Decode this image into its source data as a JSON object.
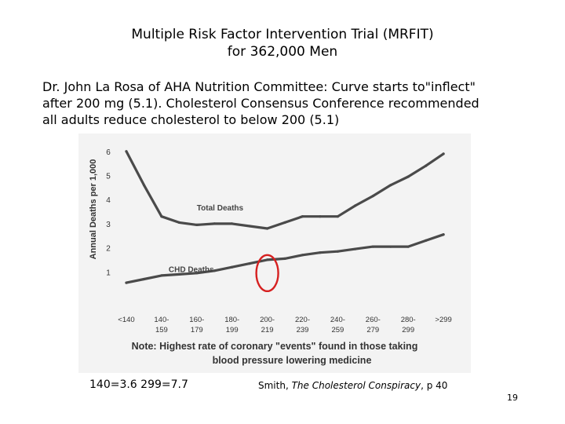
{
  "slide": {
    "title_line1": "Multiple Risk Factor Intervention Trial (MRFIT)",
    "title_line2": "for 362,000 Men",
    "caption_line1": "Dr. John La Rosa of AHA Nutrition Committee: Curve starts to\"inflect\"",
    "caption_line2": "after 200 mg (5.1). Cholesterol Consensus Conference recommended",
    "caption_line3": "all adults reduce cholesterol to below 200 (5.1)",
    "footer_values": "140=3.6 299=7.7",
    "citation_author": "Smith, ",
    "citation_title": "The Cholesterol Conspiracy",
    "citation_page": ", p 40",
    "page_number": "19"
  },
  "chart_data": {
    "type": "line",
    "ylabel": "Annual Deaths per 1,000",
    "ylim": [
      0,
      6.5
    ],
    "yticks": [
      "1",
      "2",
      "3",
      "4",
      "5",
      "6"
    ],
    "categories": [
      [
        "<140",
        ""
      ],
      [
        "140-",
        "159"
      ],
      [
        "160-",
        "179"
      ],
      [
        "180-",
        "199"
      ],
      [
        "200-",
        "219"
      ],
      [
        "220-",
        "239"
      ],
      [
        "240-",
        "259"
      ],
      [
        "260-",
        "279"
      ],
      [
        "280-",
        "299"
      ],
      [
        ">299",
        ""
      ]
    ],
    "series": [
      {
        "name": "Total Deaths",
        "color": "#4a4a4a",
        "x": [
          0,
          0.5,
          1,
          1.5,
          2,
          2.5,
          3,
          3.5,
          4,
          4.5,
          5,
          5.5,
          6,
          6.5,
          7,
          7.5,
          8,
          8.5,
          9
        ],
        "values": [
          6.0,
          4.6,
          3.3,
          3.05,
          2.95,
          3.0,
          3.0,
          2.9,
          2.8,
          3.05,
          3.3,
          3.3,
          3.3,
          3.75,
          4.15,
          4.6,
          4.95,
          5.4,
          5.9
        ]
      },
      {
        "name": "CHD Deaths",
        "color": "#4a4a4a",
        "x": [
          0,
          0.5,
          1,
          1.5,
          2,
          2.5,
          3,
          3.5,
          4,
          4.5,
          5,
          5.5,
          6,
          6.5,
          7,
          7.5,
          8,
          8.5,
          9
        ],
        "values": [
          0.55,
          0.7,
          0.85,
          0.9,
          0.95,
          1.05,
          1.2,
          1.35,
          1.5,
          1.55,
          1.7,
          1.8,
          1.85,
          1.95,
          2.05,
          2.05,
          2.05,
          2.3,
          2.55
        ]
      }
    ],
    "annotations": {
      "total_label": "Total Deaths",
      "chd_label": "CHD Deaths",
      "note_line1": "Note:  Highest rate of coronary \"events\" found in those taking",
      "note_line2": "blood pressure lowering medicine",
      "highlight_color": "#d62020"
    },
    "grid": false
  }
}
